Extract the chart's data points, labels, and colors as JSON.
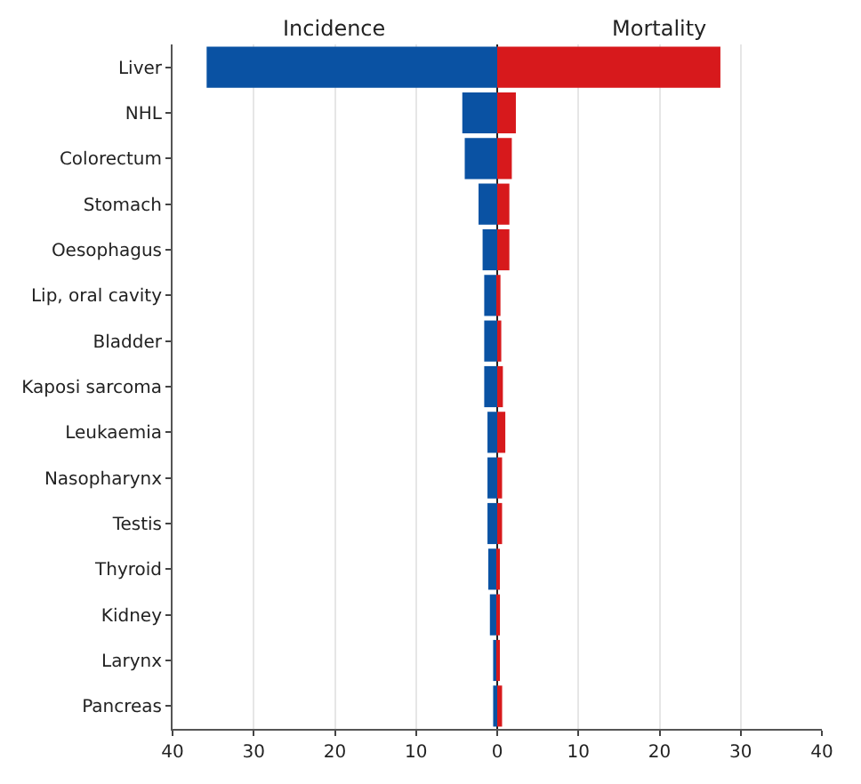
{
  "chart_data": {
    "type": "bar",
    "orientation": "horizontal",
    "legend": false,
    "grid": "x",
    "stacked": true,
    "categories": [
      "Liver",
      "NHL",
      "Colorectum",
      "Stomach",
      "Oesophagus",
      "Lip, oral cavity",
      "Bladder",
      "Kaposi sarcoma",
      "Leukaemia",
      "Nasopharynx",
      "Testis",
      "Thyroid",
      "Kidney",
      "Larynx",
      "Pancreas"
    ],
    "series": [
      {
        "name": "Incidence",
        "color": "#0a52a3",
        "values": [
          -35.8,
          -4.3,
          -4.0,
          -2.3,
          -1.8,
          -1.6,
          -1.6,
          -1.6,
          -1.2,
          -1.2,
          -1.2,
          -1.1,
          -0.9,
          -0.5,
          -0.5
        ]
      },
      {
        "name": "Mortality",
        "color": "#d7191c",
        "values": [
          27.5,
          2.3,
          1.8,
          1.5,
          1.5,
          0.4,
          0.5,
          0.7,
          1.0,
          0.6,
          0.6,
          0.3,
          0.3,
          0.3,
          0.6
        ]
      }
    ],
    "xlim": [
      -40,
      40
    ],
    "xticks": [
      {
        "value": -40,
        "label": "40"
      },
      {
        "value": -30,
        "label": "30"
      },
      {
        "value": -20,
        "label": "20"
      },
      {
        "value": -10,
        "label": "10"
      },
      0,
      10,
      20,
      30,
      40
    ]
  }
}
